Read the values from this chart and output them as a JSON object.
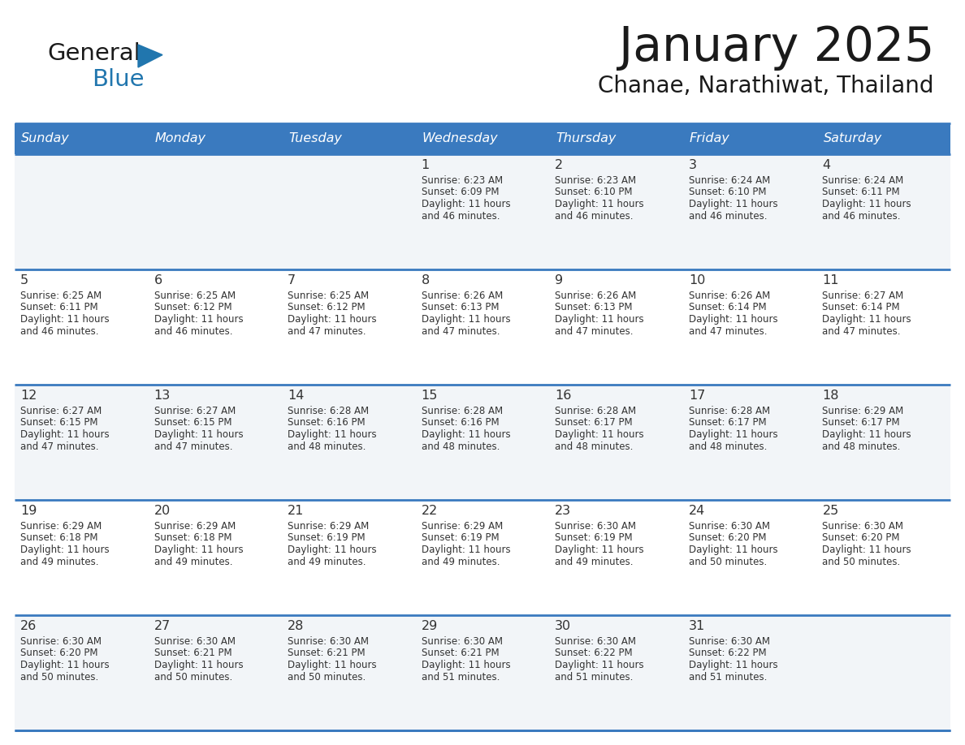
{
  "title": "January 2025",
  "subtitle": "Chanae, Narathiwat, Thailand",
  "days_of_week": [
    "Sunday",
    "Monday",
    "Tuesday",
    "Wednesday",
    "Thursday",
    "Friday",
    "Saturday"
  ],
  "header_bg": "#3a7abf",
  "header_text_color": "#ffffff",
  "border_color": "#3a7abf",
  "row_separator_color": "#4a86c8",
  "text_color_dark": "#333333",
  "logo_general_color": "#1a1a1a",
  "logo_blue_color": "#2176ae",
  "cell_bg_odd": "#f2f5f8",
  "cell_bg_even": "#ffffff",
  "weeks": [
    [
      {
        "day": null,
        "info": null
      },
      {
        "day": null,
        "info": null
      },
      {
        "day": null,
        "info": null
      },
      {
        "day": 1,
        "info": {
          "sunrise": "6:23 AM",
          "sunset": "6:09 PM",
          "daylight_line1": "Daylight: 11 hours",
          "daylight_line2": "and 46 minutes."
        }
      },
      {
        "day": 2,
        "info": {
          "sunrise": "6:23 AM",
          "sunset": "6:10 PM",
          "daylight_line1": "Daylight: 11 hours",
          "daylight_line2": "and 46 minutes."
        }
      },
      {
        "day": 3,
        "info": {
          "sunrise": "6:24 AM",
          "sunset": "6:10 PM",
          "daylight_line1": "Daylight: 11 hours",
          "daylight_line2": "and 46 minutes."
        }
      },
      {
        "day": 4,
        "info": {
          "sunrise": "6:24 AM",
          "sunset": "6:11 PM",
          "daylight_line1": "Daylight: 11 hours",
          "daylight_line2": "and 46 minutes."
        }
      }
    ],
    [
      {
        "day": 5,
        "info": {
          "sunrise": "6:25 AM",
          "sunset": "6:11 PM",
          "daylight_line1": "Daylight: 11 hours",
          "daylight_line2": "and 46 minutes."
        }
      },
      {
        "day": 6,
        "info": {
          "sunrise": "6:25 AM",
          "sunset": "6:12 PM",
          "daylight_line1": "Daylight: 11 hours",
          "daylight_line2": "and 46 minutes."
        }
      },
      {
        "day": 7,
        "info": {
          "sunrise": "6:25 AM",
          "sunset": "6:12 PM",
          "daylight_line1": "Daylight: 11 hours",
          "daylight_line2": "and 47 minutes."
        }
      },
      {
        "day": 8,
        "info": {
          "sunrise": "6:26 AM",
          "sunset": "6:13 PM",
          "daylight_line1": "Daylight: 11 hours",
          "daylight_line2": "and 47 minutes."
        }
      },
      {
        "day": 9,
        "info": {
          "sunrise": "6:26 AM",
          "sunset": "6:13 PM",
          "daylight_line1": "Daylight: 11 hours",
          "daylight_line2": "and 47 minutes."
        }
      },
      {
        "day": 10,
        "info": {
          "sunrise": "6:26 AM",
          "sunset": "6:14 PM",
          "daylight_line1": "Daylight: 11 hours",
          "daylight_line2": "and 47 minutes."
        }
      },
      {
        "day": 11,
        "info": {
          "sunrise": "6:27 AM",
          "sunset": "6:14 PM",
          "daylight_line1": "Daylight: 11 hours",
          "daylight_line2": "and 47 minutes."
        }
      }
    ],
    [
      {
        "day": 12,
        "info": {
          "sunrise": "6:27 AM",
          "sunset": "6:15 PM",
          "daylight_line1": "Daylight: 11 hours",
          "daylight_line2": "and 47 minutes."
        }
      },
      {
        "day": 13,
        "info": {
          "sunrise": "6:27 AM",
          "sunset": "6:15 PM",
          "daylight_line1": "Daylight: 11 hours",
          "daylight_line2": "and 47 minutes."
        }
      },
      {
        "day": 14,
        "info": {
          "sunrise": "6:28 AM",
          "sunset": "6:16 PM",
          "daylight_line1": "Daylight: 11 hours",
          "daylight_line2": "and 48 minutes."
        }
      },
      {
        "day": 15,
        "info": {
          "sunrise": "6:28 AM",
          "sunset": "6:16 PM",
          "daylight_line1": "Daylight: 11 hours",
          "daylight_line2": "and 48 minutes."
        }
      },
      {
        "day": 16,
        "info": {
          "sunrise": "6:28 AM",
          "sunset": "6:17 PM",
          "daylight_line1": "Daylight: 11 hours",
          "daylight_line2": "and 48 minutes."
        }
      },
      {
        "day": 17,
        "info": {
          "sunrise": "6:28 AM",
          "sunset": "6:17 PM",
          "daylight_line1": "Daylight: 11 hours",
          "daylight_line2": "and 48 minutes."
        }
      },
      {
        "day": 18,
        "info": {
          "sunrise": "6:29 AM",
          "sunset": "6:17 PM",
          "daylight_line1": "Daylight: 11 hours",
          "daylight_line2": "and 48 minutes."
        }
      }
    ],
    [
      {
        "day": 19,
        "info": {
          "sunrise": "6:29 AM",
          "sunset": "6:18 PM",
          "daylight_line1": "Daylight: 11 hours",
          "daylight_line2": "and 49 minutes."
        }
      },
      {
        "day": 20,
        "info": {
          "sunrise": "6:29 AM",
          "sunset": "6:18 PM",
          "daylight_line1": "Daylight: 11 hours",
          "daylight_line2": "and 49 minutes."
        }
      },
      {
        "day": 21,
        "info": {
          "sunrise": "6:29 AM",
          "sunset": "6:19 PM",
          "daylight_line1": "Daylight: 11 hours",
          "daylight_line2": "and 49 minutes."
        }
      },
      {
        "day": 22,
        "info": {
          "sunrise": "6:29 AM",
          "sunset": "6:19 PM",
          "daylight_line1": "Daylight: 11 hours",
          "daylight_line2": "and 49 minutes."
        }
      },
      {
        "day": 23,
        "info": {
          "sunrise": "6:30 AM",
          "sunset": "6:19 PM",
          "daylight_line1": "Daylight: 11 hours",
          "daylight_line2": "and 49 minutes."
        }
      },
      {
        "day": 24,
        "info": {
          "sunrise": "6:30 AM",
          "sunset": "6:20 PM",
          "daylight_line1": "Daylight: 11 hours",
          "daylight_line2": "and 50 minutes."
        }
      },
      {
        "day": 25,
        "info": {
          "sunrise": "6:30 AM",
          "sunset": "6:20 PM",
          "daylight_line1": "Daylight: 11 hours",
          "daylight_line2": "and 50 minutes."
        }
      }
    ],
    [
      {
        "day": 26,
        "info": {
          "sunrise": "6:30 AM",
          "sunset": "6:20 PM",
          "daylight_line1": "Daylight: 11 hours",
          "daylight_line2": "and 50 minutes."
        }
      },
      {
        "day": 27,
        "info": {
          "sunrise": "6:30 AM",
          "sunset": "6:21 PM",
          "daylight_line1": "Daylight: 11 hours",
          "daylight_line2": "and 50 minutes."
        }
      },
      {
        "day": 28,
        "info": {
          "sunrise": "6:30 AM",
          "sunset": "6:21 PM",
          "daylight_line1": "Daylight: 11 hours",
          "daylight_line2": "and 50 minutes."
        }
      },
      {
        "day": 29,
        "info": {
          "sunrise": "6:30 AM",
          "sunset": "6:21 PM",
          "daylight_line1": "Daylight: 11 hours",
          "daylight_line2": "and 51 minutes."
        }
      },
      {
        "day": 30,
        "info": {
          "sunrise": "6:30 AM",
          "sunset": "6:22 PM",
          "daylight_line1": "Daylight: 11 hours",
          "daylight_line2": "and 51 minutes."
        }
      },
      {
        "day": 31,
        "info": {
          "sunrise": "6:30 AM",
          "sunset": "6:22 PM",
          "daylight_line1": "Daylight: 11 hours",
          "daylight_line2": "and 51 minutes."
        }
      },
      {
        "day": null,
        "info": null
      }
    ]
  ]
}
